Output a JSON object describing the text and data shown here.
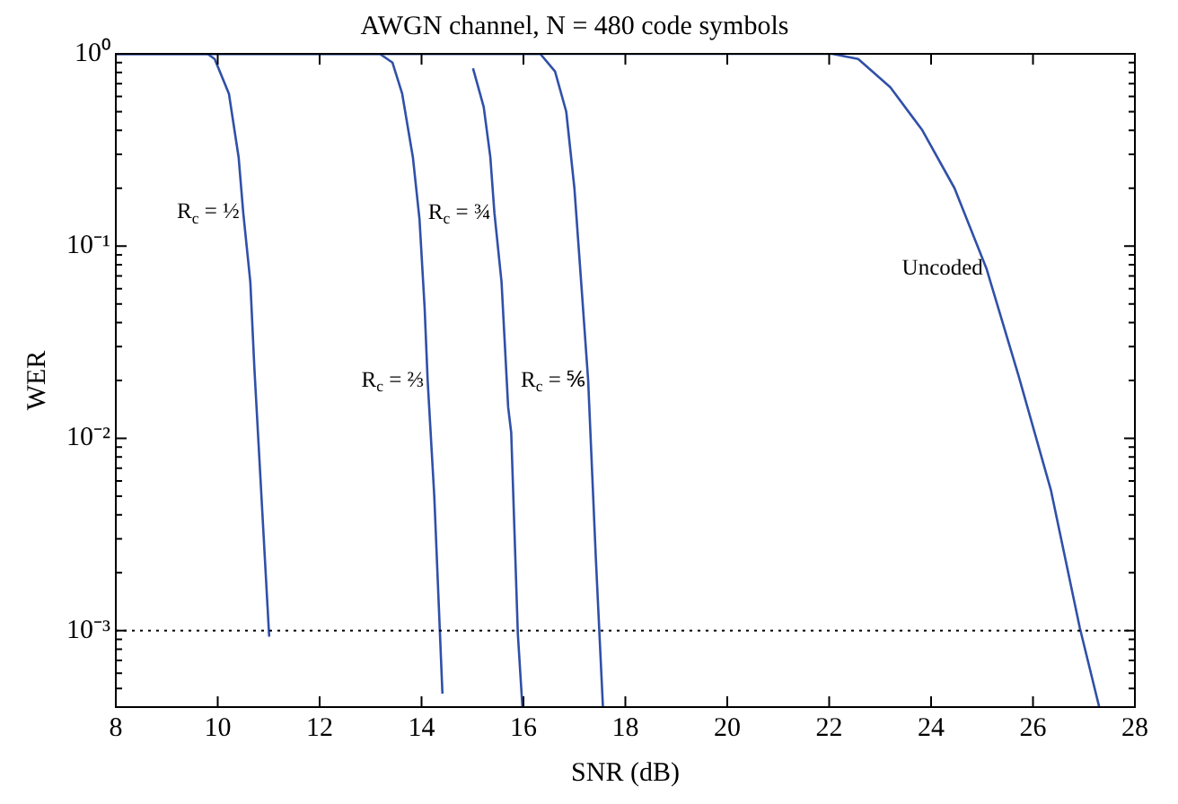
{
  "chart_data": {
    "type": "line",
    "title": "AWGN channel, N = 480 code symbols",
    "xlabel": "SNR (dB)",
    "ylabel": "WER",
    "log": "y",
    "grid": false,
    "legend": false,
    "marker": "none",
    "line_style": "solid",
    "xlim": [
      8,
      28
    ],
    "xticks": [
      8,
      10,
      12,
      14,
      16,
      18,
      20,
      22,
      24,
      26,
      28
    ],
    "ylim": [
      0.0004,
      1
    ],
    "yticks": [
      {
        "value": 1,
        "label": "10⁰"
      },
      {
        "value": 0.9,
        "label": null
      },
      {
        "value": 0.8,
        "label": null
      },
      {
        "value": 0.7,
        "label": null
      },
      {
        "value": 0.6,
        "label": null
      },
      {
        "value": 0.5,
        "label": null
      },
      {
        "value": 0.4,
        "label": null
      },
      {
        "value": 0.3,
        "label": null
      },
      {
        "value": 0.2,
        "label": null
      },
      {
        "value": 0.1,
        "label": "10⁻¹"
      },
      {
        "value": 0.09,
        "label": null
      },
      {
        "value": 0.08,
        "label": null
      },
      {
        "value": 0.07,
        "label": null
      },
      {
        "value": 0.06,
        "label": null
      },
      {
        "value": 0.05,
        "label": null
      },
      {
        "value": 0.04,
        "label": null
      },
      {
        "value": 0.03,
        "label": null
      },
      {
        "value": 0.02,
        "label": null
      },
      {
        "value": 0.01,
        "label": "10⁻²"
      },
      {
        "value": 0.009,
        "label": null
      },
      {
        "value": 0.008,
        "label": null
      },
      {
        "value": 0.007,
        "label": null
      },
      {
        "value": 0.006,
        "label": null
      },
      {
        "value": 0.005,
        "label": null
      },
      {
        "value": 0.004,
        "label": null
      },
      {
        "value": 0.003,
        "label": null
      },
      {
        "value": 0.002,
        "label": null
      },
      {
        "value": 0.001,
        "label": "10⁻³"
      },
      {
        "value": 0.0009,
        "label": null
      },
      {
        "value": 0.0008,
        "label": null
      },
      {
        "value": 0.0007,
        "label": null
      },
      {
        "value": 0.0006,
        "label": null
      },
      {
        "value": 0.0005,
        "label": null
      }
    ],
    "ref_lines": [
      {
        "axis": "y",
        "value": 0.001,
        "line_style": "dotted",
        "color": "#000000"
      }
    ],
    "series": [
      {
        "name": "R$_{c}$ = ½",
        "color": "#3050a8",
        "x": [
          8,
          9.8,
          9.94,
          10.22,
          10.41,
          10.5,
          10.64,
          10.72,
          11.01
        ],
        "values": [
          1,
          1,
          0.94,
          0.62,
          0.29,
          0.15,
          0.065,
          0.023,
          0.00093
        ]
      },
      {
        "name": "R$_{c}$ = ⅔",
        "color": "#3050a8",
        "x": [
          8,
          13.18,
          13.43,
          13.62,
          13.83,
          13.96,
          14.06,
          14.12,
          14.25,
          14.41
        ],
        "values": [
          1,
          1,
          0.9,
          0.62,
          0.29,
          0.138,
          0.048,
          0.02,
          0.005,
          0.00047
        ]
      },
      {
        "name": "R$_{c}$ = ¾",
        "color": "#3050a8",
        "x": [
          15.01,
          15.22,
          15.35,
          15.43,
          15.57,
          15.7,
          15.76,
          15.89,
          15.98
        ],
        "values": [
          0.84,
          0.53,
          0.29,
          0.149,
          0.065,
          0.0145,
          0.0107,
          0.00096,
          0.0004
        ]
      },
      {
        "name": "R$_{c}$ = ⅚",
        "color": "#3050a8",
        "x": [
          8,
          16.33,
          16.62,
          16.84,
          17,
          17.15,
          17.27,
          17.42,
          17.56
        ],
        "values": [
          1,
          1,
          0.81,
          0.5,
          0.2,
          0.056,
          0.02,
          0.0024,
          0.0004
        ]
      },
      {
        "name": "Uncoded",
        "color": "#3050a8",
        "x": [
          8,
          22.06,
          22.57,
          23.2,
          23.83,
          24.46,
          25.09,
          25.72,
          26.35,
          26.92,
          27.3
        ],
        "values": [
          1,
          1,
          0.94,
          0.67,
          0.4,
          0.2,
          0.076,
          0.021,
          0.0054,
          0.00103,
          0.0004
        ]
      }
    ]
  }
}
